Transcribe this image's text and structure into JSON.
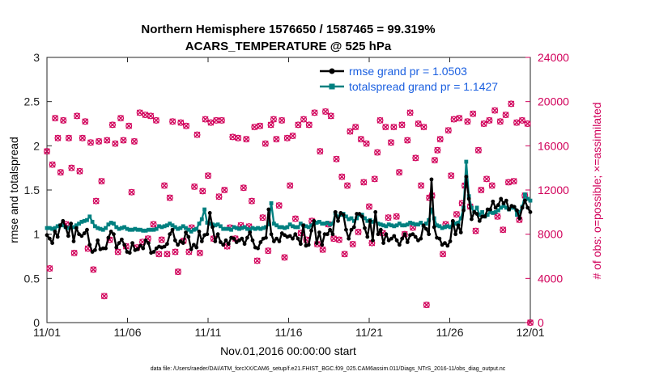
{
  "chart_data": {
    "type": "line",
    "title": "Northern Hemisphere 1576650 / 1587465 = 99.319%",
    "subtitle": "ACARS_TEMPERATURE @ 525 hPa",
    "xlabel": "Nov.01,2016 00:00:00 start",
    "ylabel": "rmse and totalspread",
    "y2label": "# of obs: o=possible; ×=assimilated",
    "xlim": [
      0,
      30
    ],
    "ylim": [
      0,
      3
    ],
    "y2lim": [
      0,
      24000
    ],
    "x_tick_values": [
      0,
      5,
      10,
      15,
      20,
      25,
      30
    ],
    "x_tick_labels": [
      "11/01",
      "11/06",
      "11/11",
      "11/16",
      "11/21",
      "11/26",
      "12/01"
    ],
    "y_tick_values": [
      0,
      0.5,
      1,
      1.5,
      2,
      2.5,
      3
    ],
    "y_tick_labels": [
      "0",
      "0.5",
      "1",
      "1.5",
      "2",
      "2.5",
      "3"
    ],
    "y2_tick_values": [
      0,
      4000,
      8000,
      12000,
      16000,
      20000,
      24000
    ],
    "y2_tick_labels": [
      "0",
      "4000",
      "8000",
      "12000",
      "16000",
      "20000",
      "24000"
    ],
    "footnote": "data file: /Users/raeder/DAI/ATM_forcXX/CAM6_setup/f.e21.FHIST_BGC.f09_025.CAM6assim.011/Diags_NTrS_2016-11/obs_diag_output.nc",
    "series": [
      {
        "name": "rmse",
        "legend": "rmse grand pr = 1.0503",
        "color": "#000000",
        "axis": "left",
        "values": [
          0.99,
          0.95,
          0.9,
          1.03,
          0.97,
          1.1,
          1.15,
          1.08,
          0.98,
          1.12,
          0.92,
          1.07,
          1.0,
          0.98,
          1.01,
          1.05,
          0.88,
          0.8,
          0.82,
          0.93,
          0.83,
          0.84,
          0.84,
          0.96,
          1.03,
          1.0,
          0.85,
          0.9,
          0.94,
          0.88,
          0.8,
          0.79,
          0.9,
          0.82,
          0.83,
          0.87,
          0.84,
          0.93,
          0.9,
          0.79,
          0.8,
          0.84,
          0.86,
          0.85,
          0.86,
          0.89,
          1.0,
          1.05,
          0.93,
          0.88,
          0.92,
          0.9,
          1.02,
          0.97,
          0.83,
          0.88,
          0.85,
          1.03,
          0.92,
          0.99,
          1.0,
          1.24,
          1.08,
          0.92,
          1.0,
          0.91,
          0.88,
          0.93,
          0.89,
          0.96,
          0.95,
          0.91,
          0.93,
          0.95,
          0.89,
          0.96,
          1.02,
          0.93,
          0.85,
          0.84,
          0.91,
          0.95,
          0.96,
          1.28,
          1.0,
          0.92,
          0.95,
          0.92,
          1.01,
          0.99,
          0.97,
          0.98,
          0.95,
          1.0,
          0.95,
          0.89,
          1.1,
          0.87,
          0.88,
          1.04,
          1.15,
          0.9,
          1.02,
          0.88,
          1.0,
          1.0,
          1.05,
          1.0,
          1.25,
          1.15,
          1.24,
          1.22,
          1.05,
          0.95,
          1.05,
          1.08,
          1.23,
          1.23,
          1.2,
          1.07,
          0.97,
          1.15,
          0.93,
          1.25,
          1.0,
          1.05,
          0.9,
          1.0,
          0.93,
          0.95,
          0.98,
          0.93,
          0.88,
          0.95,
          1.0,
          0.91,
          0.99,
          1.0,
          0.97,
          0.93,
          0.95,
          1.1,
          1.06,
          1.0,
          1.62,
          1.08,
          0.96,
          0.95,
          0.88,
          0.9,
          0.87,
          0.92,
          1.15,
          1.0,
          1.1,
          1.02,
          1.27,
          1.65,
          1.4,
          1.17,
          1.25,
          1.23,
          1.15,
          1.2,
          1.2,
          1.28,
          1.28,
          1.37,
          1.3,
          1.33,
          1.4,
          1.35,
          1.38,
          1.28,
          1.32,
          1.31,
          1.27,
          1.18,
          1.3,
          1.38,
          1.3,
          1.25
        ]
      },
      {
        "name": "totalspread",
        "legend": "totalspread grand pr = 1.1427",
        "color": "#008080",
        "axis": "left",
        "values": [
          1.07,
          1.07,
          1.06,
          1.07,
          1.09,
          1.1,
          1.1,
          1.08,
          1.07,
          1.08,
          1.08,
          1.1,
          1.12,
          1.14,
          1.15,
          1.16,
          1.2,
          1.14,
          1.09,
          1.07,
          1.06,
          1.05,
          1.07,
          1.11,
          1.13,
          1.12,
          1.08,
          1.06,
          1.07,
          1.08,
          1.06,
          1.05,
          1.05,
          1.06,
          1.05,
          1.05,
          1.04,
          1.04,
          1.05,
          1.05,
          1.05,
          1.06,
          1.09,
          1.08,
          1.09,
          1.1,
          1.12,
          1.1,
          1.08,
          1.06,
          1.07,
          1.09,
          1.07,
          1.05,
          1.03,
          1.05,
          1.06,
          1.12,
          1.17,
          1.28,
          1.13,
          1.12,
          1.11,
          1.1,
          1.11,
          1.09,
          1.06,
          1.06,
          1.06,
          1.05,
          1.08,
          1.07,
          1.06,
          1.07,
          1.08,
          1.06,
          1.05,
          1.07,
          1.06,
          1.07,
          1.06,
          1.07,
          1.08,
          1.11,
          1.35,
          1.12,
          1.1,
          1.08,
          1.08,
          1.07,
          1.08,
          1.11,
          1.09,
          1.08,
          1.08,
          1.12,
          1.1,
          1.09,
          1.08,
          1.1,
          1.12,
          1.13,
          1.14,
          1.12,
          1.12,
          1.13,
          1.11,
          1.12,
          1.24,
          1.2,
          1.22,
          1.23,
          1.2,
          1.17,
          1.18,
          1.15,
          1.18,
          1.22,
          1.22,
          1.18,
          1.15,
          1.16,
          1.14,
          1.15,
          1.12,
          1.11,
          1.1,
          1.09,
          1.11,
          1.1,
          1.09,
          1.1,
          1.12,
          1.1,
          1.1,
          1.11,
          1.13,
          1.12,
          1.11,
          1.11,
          1.13,
          1.1,
          1.12,
          1.16,
          1.28,
          1.18,
          1.1,
          1.09,
          1.07,
          1.08,
          1.09,
          1.08,
          1.13,
          1.12,
          1.13,
          1.18,
          1.3,
          1.82,
          1.43,
          1.3,
          1.25,
          1.3,
          1.22,
          1.25,
          1.2,
          1.22,
          1.25,
          1.24,
          1.25,
          1.27,
          1.3,
          1.32,
          1.3,
          1.28,
          1.3,
          1.3,
          1.22,
          1.25,
          1.31,
          1.45,
          1.4,
          1.38
        ]
      },
      {
        "name": "possible",
        "color": "#d1005a",
        "marker": "o",
        "axis": "right",
        "values": [
          15500,
          4900,
          14300,
          18500,
          16700,
          13600,
          18300,
          8900,
          16700,
          14000,
          6300,
          18700,
          13700,
          16700,
          18200,
          6700,
          16300,
          4800,
          11000,
          16400,
          12800,
          2400,
          16500,
          7500,
          17900,
          16200,
          6400,
          18500,
          16500,
          6900,
          17800,
          11800,
          16400,
          6800,
          19000,
          7300,
          18800,
          7600,
          18700,
          8900,
          18300,
          6200,
          7500,
          12400,
          6200,
          11300,
          18200,
          6400,
          4600,
          18100,
          7400,
          17800,
          6400,
          8600,
          12300,
          17000,
          6300,
          11900,
          18400,
          13300,
          18100,
          7600,
          18300,
          11400,
          18300,
          12000,
          6900,
          8600,
          16800,
          7600,
          16700,
          8800,
          12200,
          16600,
          8700,
          11000,
          17700,
          5600,
          17800,
          9500,
          16200,
          6500,
          17900,
          18400,
          16600,
          10600,
          18300,
          5900,
          16700,
          12400,
          16900,
          9400,
          17900,
          8100,
          18400,
          7500,
          17900,
          9200,
          19000,
          7100,
          15500,
          6600,
          19100,
          8900,
          18700,
          7600,
          14800,
          7500,
          13200,
          6200,
          12400,
          17300,
          7100,
          17700,
          8200,
          16600,
          12700,
          16200,
          10500,
          7200,
          13000,
          15400,
          18300,
          8100,
          17700,
          9500,
          16300,
          17700,
          9600,
          13600,
          17900,
          8000,
          16500,
          19000,
          8600,
          14900,
          18000,
          12400,
          17700,
          1600,
          11300,
          11500,
          14700,
          15600,
          16600,
          6200,
          8900,
          17400,
          13300,
          18400,
          9800,
          18500,
          10800,
          12400,
          18200,
          10500,
          18900,
          8300,
          15600,
          12000,
          18000,
          13000,
          18300,
          12400,
          19200,
          9600,
          18200,
          8400,
          18800,
          12700,
          19800,
          12800,
          18100,
          9300,
          18300,
          11500,
          18000,
          0
        ]
      }
    ]
  }
}
